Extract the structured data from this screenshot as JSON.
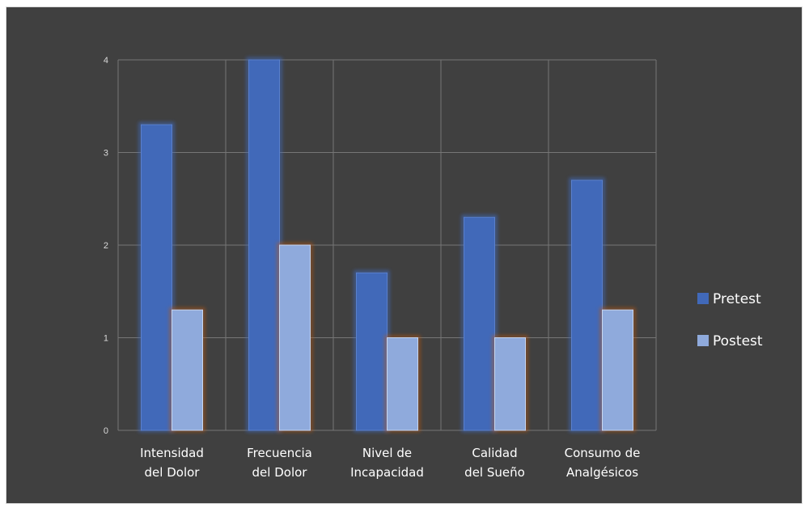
{
  "chart_data": {
    "type": "bar",
    "title": "",
    "xlabel": "",
    "ylabel": "",
    "ylim": [
      0,
      4
    ],
    "yticks": [
      0,
      1,
      2,
      3,
      4
    ],
    "grid": true,
    "legend_position": "right",
    "categories": [
      [
        "Intensidad",
        "del Dolor"
      ],
      [
        "Frecuencia",
        "del Dolor"
      ],
      [
        "Nivel de",
        "Incapacidad"
      ],
      [
        "Calidad",
        "del Sueño"
      ],
      [
        "Consumo de",
        "Analgésicos"
      ]
    ],
    "series": [
      {
        "name": "Pretest",
        "color": "#4169b9",
        "values": [
          3.3,
          4.0,
          1.7,
          2.3,
          2.7
        ]
      },
      {
        "name": "Postest",
        "color": "#8faadc",
        "values": [
          1.3,
          2.0,
          1.0,
          1.0,
          1.3
        ]
      }
    ]
  },
  "colors": {
    "background": "#404040",
    "grid": "#767676",
    "text": "#ffffff",
    "tick_text": "#d9d9d9",
    "glow": "#c55a11"
  }
}
